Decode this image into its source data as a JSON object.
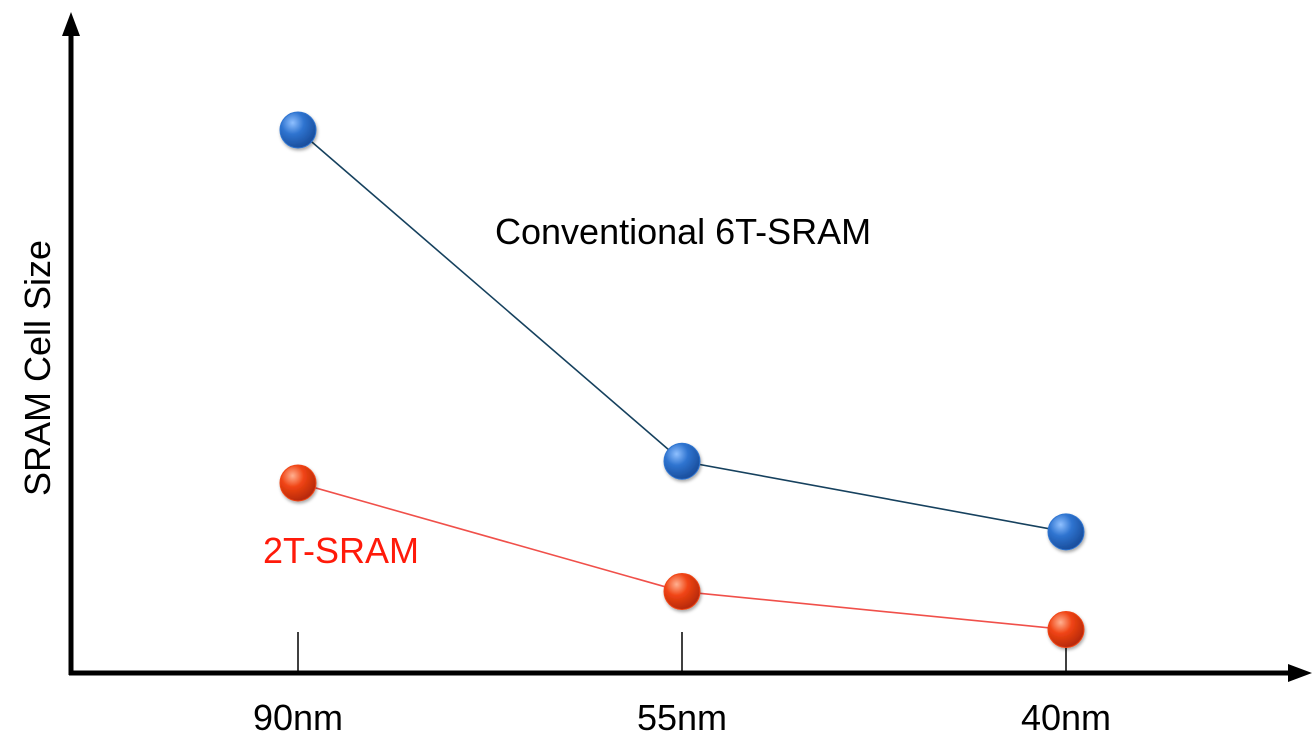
{
  "chart_data": {
    "type": "line",
    "categories": [
      "90nm",
      "55nm",
      "40nm"
    ],
    "ylabel": "SRAM Cell Size",
    "xlabel": "",
    "ylim": [
      0,
      100
    ],
    "grid": false,
    "series": [
      {
        "name": "Conventional 6T-SRAM",
        "values": [
          100,
          39,
          26
        ],
        "line_color": "#16415e",
        "point_color": "#2f74d0"
      },
      {
        "name": "2T-SRAM",
        "values": [
          35,
          15,
          8
        ],
        "line_color": "#f0504a",
        "point_color": "#f04414"
      }
    ]
  }
}
